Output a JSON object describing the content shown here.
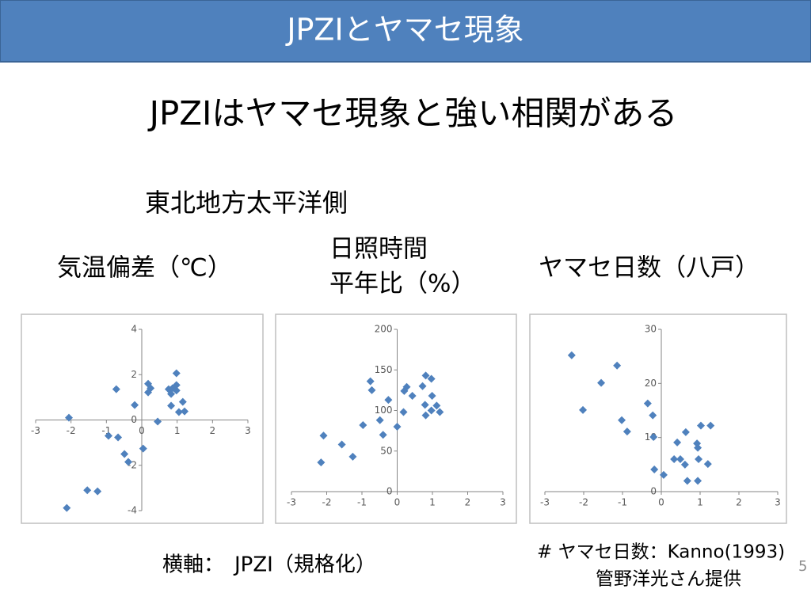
{
  "slide": {
    "title": "JPZIとヤマセ現象",
    "headline": "JPZIはヤマセ現象と強い相関がある",
    "region": "東北地方太平洋側",
    "x_axis_note": "横軸：　JPZI（規格化）",
    "source": "# ヤマセ日数：Kanno(1993)",
    "credit": "管野洋光さん提供",
    "page_number": "5"
  },
  "chart_data": [
    {
      "type": "scatter",
      "title": [
        "気温偏差（℃）"
      ],
      "color": "#4f81bd",
      "x": [
        -2.06,
        -0.72,
        -0.94,
        -0.67,
        -0.49,
        -0.38,
        -0.2,
        0.04,
        0.45,
        0.18,
        0.25,
        0.18,
        0.98,
        0.76,
        0.83,
        0.83,
        0.98,
        0.98,
        1.16,
        1.05,
        1.21,
        0.87,
        -1.54,
        -1.25,
        -2.12
      ],
      "y": [
        0.1,
        1.36,
        -0.7,
        -0.77,
        -1.5,
        -1.85,
        0.66,
        -1.26,
        -0.07,
        1.6,
        1.4,
        1.22,
        2.06,
        1.36,
        1.15,
        0.63,
        1.54,
        1.3,
        0.8,
        0.35,
        0.38,
        1.4,
        -3.1,
        -3.15,
        -3.88
      ],
      "xlim": [
        -3,
        3
      ],
      "xticks": [
        -3,
        -2,
        -1,
        0,
        1,
        2,
        3
      ],
      "ylim": [
        -4,
        4
      ],
      "yticks": [
        -4,
        -2,
        0,
        2,
        4
      ]
    },
    {
      "type": "scatter",
      "title": [
        "日照時間",
        "平年比（%）"
      ],
      "color": "#4f81bd",
      "x": [
        -2.09,
        -2.16,
        -1.57,
        -1.26,
        -0.97,
        -0.76,
        -0.72,
        -0.49,
        -0.4,
        -0.25,
        0,
        0.18,
        0.2,
        0.27,
        0.43,
        0.72,
        0.81,
        0.97,
        0.79,
        0.81,
        0.99,
        0.97,
        1.12,
        1.21
      ],
      "y": [
        69,
        36,
        58,
        43,
        82,
        136,
        125,
        88,
        70,
        113,
        80,
        98,
        124,
        129,
        118,
        130,
        143,
        139,
        107,
        94,
        118,
        100,
        106,
        98
      ],
      "xlim": [
        -3,
        3
      ],
      "xticks": [
        -3,
        -2,
        -1,
        0,
        1,
        2,
        3
      ],
      "ylim": [
        0,
        200
      ],
      "yticks": [
        0,
        50,
        100,
        150,
        200
      ]
    },
    {
      "type": "scatter",
      "title": [
        "ヤマセ日数（八戸）"
      ],
      "color": "#4f81bd",
      "x": [
        -2.31,
        -2.02,
        -1.55,
        -1.14,
        -1.02,
        -0.88,
        -0.35,
        -0.22,
        -0.2,
        -0.18,
        0.06,
        0.33,
        0.41,
        0.49,
        0.63,
        0.61,
        0.67,
        0.92,
        0.94,
        0.94,
        0.96,
        1.02,
        1.2,
        1.27
      ],
      "y": [
        25.2,
        15.1,
        20.1,
        23.3,
        13.2,
        11.1,
        16.3,
        14.1,
        10.1,
        4.1,
        3.1,
        6,
        9.1,
        6,
        11,
        5,
        2,
        8.9,
        8.1,
        2,
        6,
        12.2,
        5.1,
        12.2
      ],
      "xlim": [
        -3,
        3
      ],
      "xticks": [
        -3,
        -2,
        -1,
        0,
        1,
        2,
        3
      ],
      "ylim": [
        0,
        30
      ],
      "yticks": [
        0,
        10,
        20,
        30
      ]
    }
  ]
}
